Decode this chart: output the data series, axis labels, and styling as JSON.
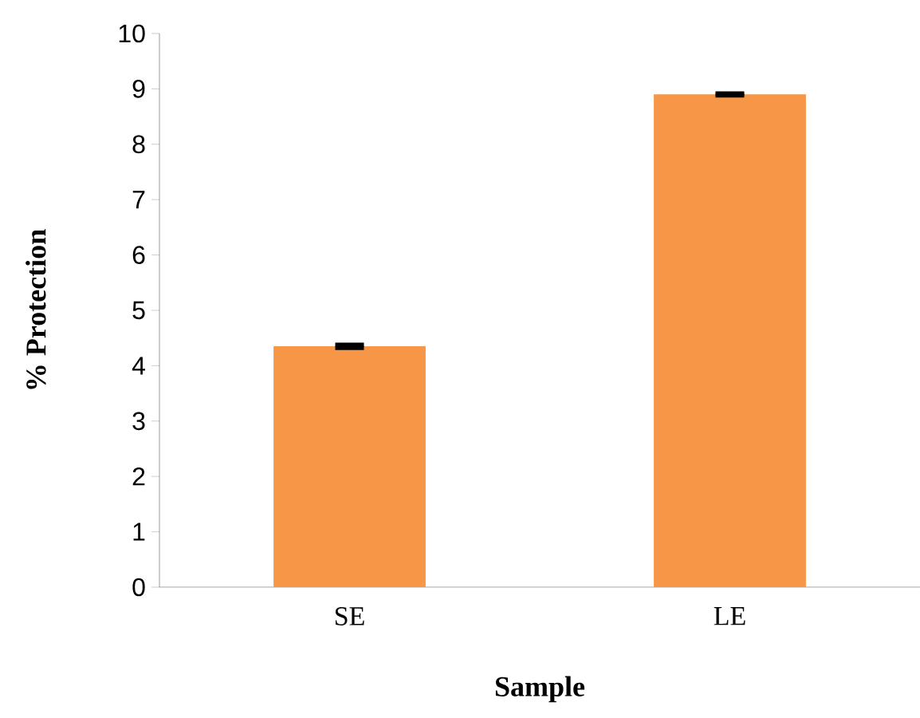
{
  "chart_data": {
    "type": "bar",
    "xlabel": "Sample",
    "ylabel": "% Protection",
    "categories": [
      "SE",
      "LE"
    ],
    "values": [
      4.35,
      8.9
    ],
    "errors": [
      0.03,
      0.02
    ],
    "color": "#f79646",
    "ylim": [
      0,
      10
    ],
    "yticks": [
      0,
      1,
      2,
      3,
      4,
      5,
      6,
      7,
      8,
      9,
      10
    ],
    "grid": false
  }
}
